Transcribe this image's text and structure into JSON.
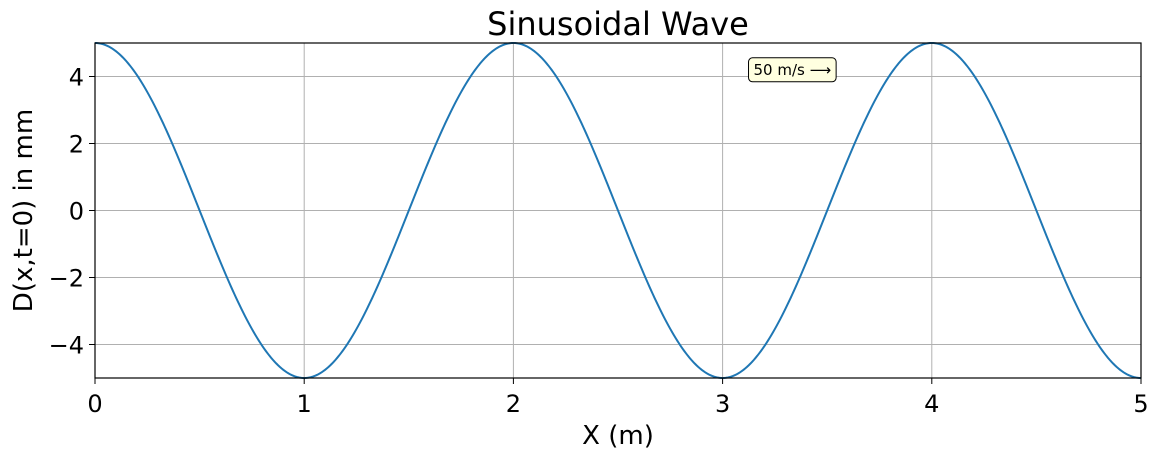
{
  "chart_data": {
    "type": "line",
    "title": "Sinusoidal Wave",
    "xlabel": "X (m)",
    "ylabel": "D(x,t=0) in mm",
    "xlim": [
      0,
      5
    ],
    "ylim": [
      -5,
      5
    ],
    "x_ticks": [
      0,
      1,
      2,
      3,
      4,
      5
    ],
    "x_tick_labels": [
      "0",
      "1",
      "2",
      "3",
      "4",
      "5"
    ],
    "y_ticks": [
      -4,
      -2,
      0,
      2,
      4
    ],
    "y_tick_labels": [
      "−4",
      "−2",
      "0",
      "2",
      "4"
    ],
    "grid": true,
    "series": [
      {
        "color": "#1f77b4",
        "function": "A*cos(2*pi*x/wavelength)",
        "amplitude": 5,
        "wavelength": 2,
        "x_range": [
          0,
          5
        ],
        "key_points": [
          {
            "x": 0,
            "y": 5
          },
          {
            "x": 0.5,
            "y": 0
          },
          {
            "x": 1,
            "y": -5
          },
          {
            "x": 1.5,
            "y": 0
          },
          {
            "x": 2,
            "y": 5
          },
          {
            "x": 2.5,
            "y": 0
          },
          {
            "x": 3,
            "y": -5
          },
          {
            "x": 3.5,
            "y": 0
          },
          {
            "x": 4,
            "y": 5
          },
          {
            "x": 4.5,
            "y": 0
          },
          {
            "x": 5,
            "y": -5
          }
        ]
      }
    ],
    "annotations": [
      {
        "text": "50 m/s ⟶",
        "x": 3.1,
        "y": 4.2,
        "box_color": "#ffffe0"
      }
    ]
  }
}
